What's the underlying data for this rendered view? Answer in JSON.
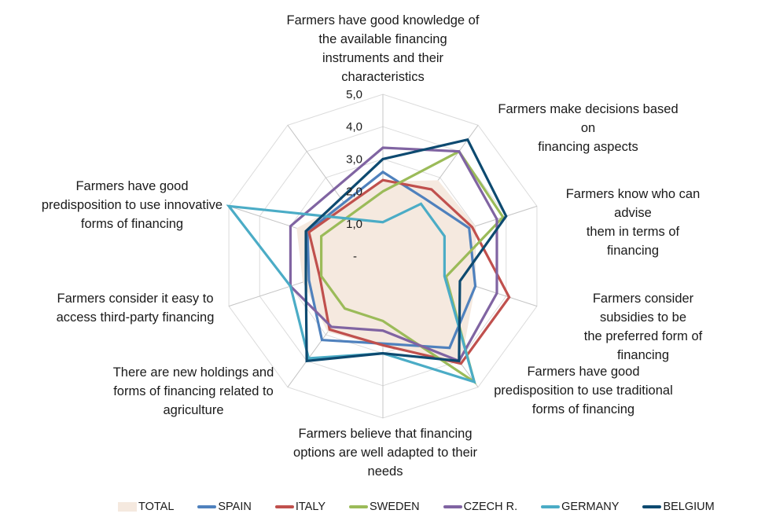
{
  "chart_data": {
    "type": "radar",
    "title": "",
    "categories": [
      "Farmers have good knowledge of\nthe available financing\ninstruments and their\ncharacteristics",
      "Farmers make decisions based on\nfinancing aspects",
      "Farmers know who can advise\nthem in terms of financing",
      "Farmers consider subsidies to be\nthe preferred form of financing",
      "Farmers have good\npredisposition to use traditional\nforms of financing",
      "Farmers believe that financing\noptions are well adapted to their\nneeds",
      "There are new holdings and\nforms of financing related to\nagriculture",
      "Farmers consider it easy to\naccess third-party financing",
      "Farmers have good\npredisposition to use innovative\nforms of financing"
    ],
    "rlim": [
      0,
      5
    ],
    "ticks": [
      "-",
      "1,0",
      "2,0",
      "3,0",
      "4,0",
      "5,0"
    ],
    "legend_position": "bottom",
    "series": [
      {
        "name": "TOTAL",
        "kind": "area",
        "color": "#f5e9df",
        "values": [
          2.3,
          2.9,
          3.0,
          3.0,
          4.1,
          2.8,
          2.9,
          2.6,
          2.8
        ]
      },
      {
        "name": "SPAIN",
        "color": "#4f81bd",
        "values": [
          2.6,
          2.2,
          2.8,
          3.0,
          3.5,
          2.7,
          3.2,
          2.4,
          2.45
        ]
      },
      {
        "name": "ITALY",
        "color": "#c0504d",
        "values": [
          2.35,
          2.55,
          2.9,
          4.1,
          4.1,
          2.75,
          2.8,
          2.05,
          2.4
        ]
      },
      {
        "name": "SWEDEN",
        "color": "#9bbb59",
        "values": [
          2.0,
          4.0,
          3.9,
          2.05,
          4.8,
          2.0,
          2.0,
          2.0,
          2.0
        ]
      },
      {
        "name": "CZECH R.",
        "color": "#8064a2",
        "values": [
          3.35,
          4.0,
          3.7,
          3.7,
          4.0,
          2.3,
          2.7,
          3.0,
          3.0
        ]
      },
      {
        "name": "GERMANY",
        "color": "#4bacc6",
        "values": [
          1.05,
          2.0,
          2.0,
          2.0,
          4.8,
          3.0,
          3.9,
          3.0,
          5.0
        ]
      },
      {
        "name": "BELGIUM",
        "color": "#0d4a70",
        "values": [
          3.0,
          4.45,
          4.0,
          2.5,
          4.0,
          3.0,
          4.0,
          2.5,
          2.5
        ]
      }
    ]
  }
}
